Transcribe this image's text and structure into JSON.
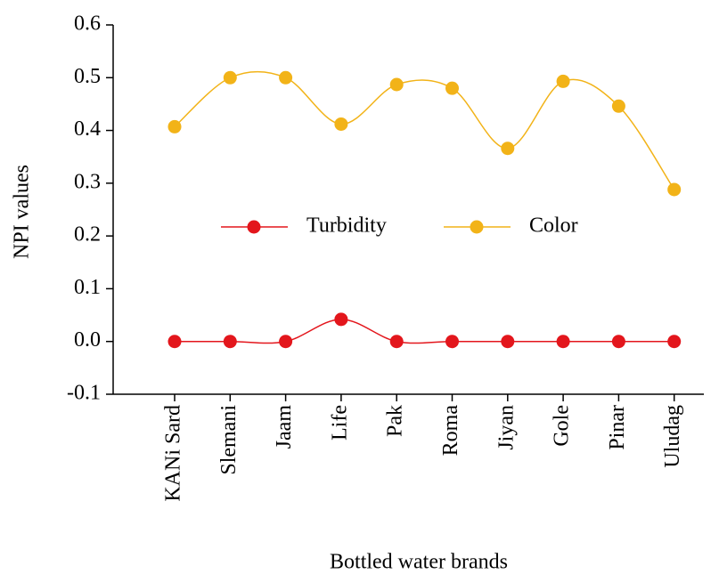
{
  "chart_data": {
    "type": "line",
    "x_label": "Bottled water brands",
    "y_label": "NPI values",
    "categories": [
      "KANi Sard",
      "Slemani",
      "Jaam",
      "Life",
      "Pak",
      "Roma",
      "Jiyan",
      "Gole",
      "Pinar",
      "Uludag"
    ],
    "series": [
      {
        "name": "Turbidity",
        "color": "#e3161c",
        "values": [
          0,
          0,
          0,
          0.042,
          0,
          0,
          0,
          0,
          0,
          0
        ]
      },
      {
        "name": "Color",
        "color": "#f2b318",
        "values": [
          0.407,
          0.5,
          0.5,
          0.412,
          0.487,
          0.48,
          0.366,
          0.493,
          0.446,
          0.288
        ]
      }
    ],
    "ylim": [
      -0.1,
      0.6
    ],
    "yticks": [
      -0.1,
      {
        "value": 0,
        "label": "0.0"
      },
      0.1,
      0.2,
      0.3,
      0.4,
      0.5,
      0.6
    ],
    "smooth": true,
    "grid": false
  }
}
